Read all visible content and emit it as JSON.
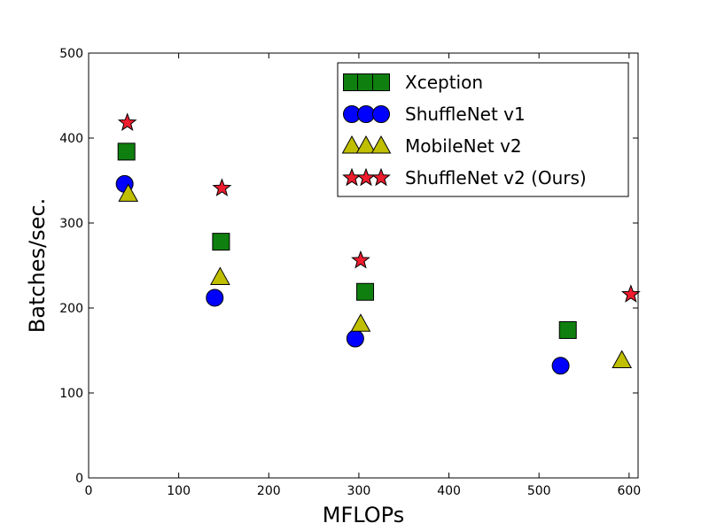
{
  "chart_data": {
    "type": "scatter",
    "title": "",
    "xlabel": "MFLOPs",
    "ylabel": "Batches/sec.",
    "xlim": [
      0,
      610
    ],
    "ylim": [
      0,
      500
    ],
    "xticks": [
      0,
      100,
      200,
      300,
      400,
      500,
      600
    ],
    "yticks": [
      0,
      100,
      200,
      300,
      400,
      500
    ],
    "grid": false,
    "legend_position": "top-right",
    "series": [
      {
        "name": "Xception",
        "marker": "square",
        "color": "#0f7f0f",
        "points": [
          {
            "x": 42,
            "y": 384
          },
          {
            "x": 147,
            "y": 278
          },
          {
            "x": 307,
            "y": 219
          },
          {
            "x": 532,
            "y": 174
          }
        ]
      },
      {
        "name": "ShuffleNet v1",
        "marker": "circle",
        "color": "#0000ff",
        "points": [
          {
            "x": 40,
            "y": 346
          },
          {
            "x": 140,
            "y": 212
          },
          {
            "x": 296,
            "y": 164
          },
          {
            "x": 524,
            "y": 132
          }
        ]
      },
      {
        "name": "MobileNet v2",
        "marker": "triangle",
        "color": "#bfbf00",
        "points": [
          {
            "x": 44,
            "y": 334
          },
          {
            "x": 146,
            "y": 236
          },
          {
            "x": 302,
            "y": 181
          },
          {
            "x": 592,
            "y": 138
          }
        ]
      },
      {
        "name": "ShuffleNet v2 (Ours)",
        "marker": "star",
        "color": "#ee1c2e",
        "points": [
          {
            "x": 43,
            "y": 418
          },
          {
            "x": 148,
            "y": 341
          },
          {
            "x": 302,
            "y": 256
          },
          {
            "x": 602,
            "y": 216
          }
        ]
      }
    ]
  }
}
